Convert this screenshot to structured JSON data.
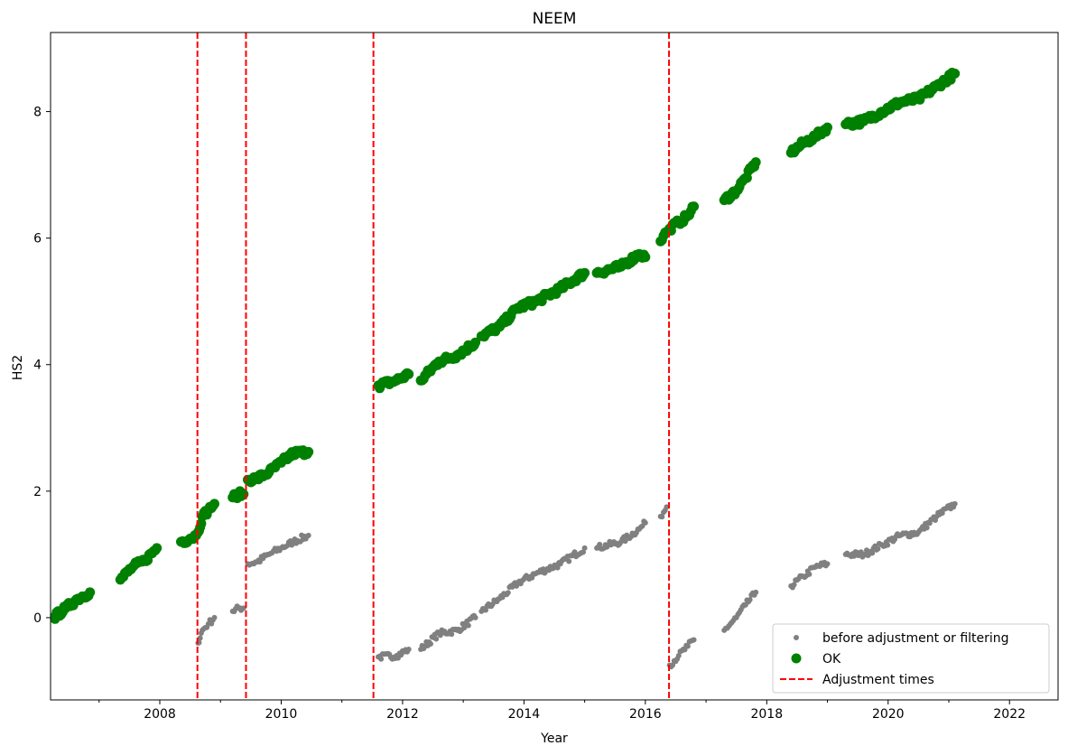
{
  "chart_data": {
    "type": "scatter",
    "title": "NEEM",
    "xlabel": "Year",
    "ylabel": "HS2",
    "xlim": [
      2006.2,
      2022.8
    ],
    "ylim": [
      -1.3,
      9.25
    ],
    "x_ticks": [
      2008,
      2010,
      2012,
      2014,
      2016,
      2018,
      2020,
      2022
    ],
    "y_ticks": [
      0,
      2,
      4,
      6,
      8
    ],
    "grid": false,
    "legend_position": "lower-right",
    "legend": [
      {
        "label": "before adjustment or filtering",
        "marker": "small-dot",
        "color": "#808080"
      },
      {
        "label": "OK",
        "marker": "dot",
        "color": "#008000"
      },
      {
        "label": "Adjustment times",
        "marker": "dashed-line",
        "color": "#ff0000"
      }
    ],
    "adjustment_times": [
      2008.62,
      2009.42,
      2011.52,
      2016.39
    ],
    "series": [
      {
        "name": "before adjustment or filtering",
        "color": "#808080",
        "segments": [
          {
            "x": [
              2006.25,
              2006.45,
              2006.65,
              2006.85
            ],
            "y": [
              0.0,
              0.15,
              0.3,
              0.4
            ]
          },
          {
            "x": [
              2007.35,
              2007.55,
              2007.75,
              2007.95
            ],
            "y": [
              0.6,
              0.8,
              0.9,
              1.1
            ]
          },
          {
            "x": [
              2008.63,
              2008.7,
              2008.8,
              2008.9
            ],
            "y": [
              -0.4,
              -0.2,
              -0.1,
              0.0
            ]
          },
          {
            "x": [
              2009.2,
              2009.3,
              2009.38
            ],
            "y": [
              0.1,
              0.15,
              0.15
            ]
          },
          {
            "x": [
              2009.45,
              2009.6,
              2009.8,
              2010.0,
              2010.2,
              2010.45
            ],
            "y": [
              0.85,
              0.88,
              1.0,
              1.1,
              1.2,
              1.3
            ]
          },
          {
            "x": [
              2011.6,
              2011.9,
              2012.1
            ],
            "y": [
              -0.62,
              -0.6,
              -0.5
            ]
          },
          {
            "x": [
              2012.3,
              2012.6,
              2012.9,
              2013.2
            ],
            "y": [
              -0.5,
              -0.25,
              -0.2,
              0.0
            ]
          },
          {
            "x": [
              2013.3,
              2013.6,
              2013.9,
              2014.2,
              2014.6,
              2015.0
            ],
            "y": [
              0.1,
              0.3,
              0.55,
              0.7,
              0.85,
              1.1
            ]
          },
          {
            "x": [
              2015.2,
              2015.6,
              2015.9,
              2016.0
            ],
            "y": [
              1.1,
              1.2,
              1.4,
              1.5
            ]
          },
          {
            "x": [
              2016.25,
              2016.35
            ],
            "y": [
              1.6,
              1.75
            ]
          },
          {
            "x": [
              2016.4,
              2016.55,
              2016.7,
              2016.8
            ],
            "y": [
              -0.75,
              -0.6,
              -0.45,
              -0.35
            ]
          },
          {
            "x": [
              2017.3,
              2017.5,
              2017.65,
              2017.82
            ],
            "y": [
              -0.2,
              0.0,
              0.2,
              0.4
            ]
          },
          {
            "x": [
              2018.4,
              2018.6,
              2018.8,
              2019.0
            ],
            "y": [
              0.5,
              0.65,
              0.8,
              0.85
            ]
          },
          {
            "x": [
              2019.3,
              2019.6,
              2019.9,
              2020.2,
              2020.5,
              2020.8,
              2021.1
            ],
            "y": [
              1.0,
              1.0,
              1.15,
              1.3,
              1.35,
              1.6,
              1.8
            ]
          }
        ]
      },
      {
        "name": "OK",
        "color": "#008000",
        "segments": [
          {
            "x": [
              2006.25,
              2006.45,
              2006.65,
              2006.85
            ],
            "y": [
              0.0,
              0.15,
              0.3,
              0.4
            ]
          },
          {
            "x": [
              2007.35,
              2007.55,
              2007.75,
              2007.95
            ],
            "y": [
              0.6,
              0.8,
              0.9,
              1.1
            ]
          },
          {
            "x": [
              2008.35,
              2008.5,
              2008.6
            ],
            "y": [
              1.2,
              1.25,
              1.3
            ]
          },
          {
            "x": [
              2008.63,
              2008.7,
              2008.8,
              2008.9
            ],
            "y": [
              1.35,
              1.6,
              1.7,
              1.8
            ]
          },
          {
            "x": [
              2009.2,
              2009.3,
              2009.38
            ],
            "y": [
              1.9,
              1.95,
              1.95
            ]
          },
          {
            "x": [
              2009.45,
              2009.6,
              2009.8,
              2010.0,
              2010.2,
              2010.45
            ],
            "y": [
              2.18,
              2.2,
              2.3,
              2.45,
              2.6,
              2.62
            ]
          },
          {
            "x": [
              2011.6,
              2011.9,
              2012.1
            ],
            "y": [
              3.67,
              3.75,
              3.85
            ]
          },
          {
            "x": [
              2012.3,
              2012.6,
              2012.9,
              2013.2
            ],
            "y": [
              3.75,
              4.05,
              4.15,
              4.35
            ]
          },
          {
            "x": [
              2013.3,
              2013.6,
              2013.9,
              2014.2,
              2014.6,
              2015.0
            ],
            "y": [
              4.45,
              4.6,
              4.9,
              5.0,
              5.2,
              5.45
            ]
          },
          {
            "x": [
              2015.2,
              2015.6,
              2015.9,
              2016.0
            ],
            "y": [
              5.45,
              5.55,
              5.75,
              5.7
            ]
          },
          {
            "x": [
              2016.25,
              2016.35
            ],
            "y": [
              5.95,
              6.1
            ]
          },
          {
            "x": [
              2016.4,
              2016.55,
              2016.7,
              2016.8
            ],
            "y": [
              6.15,
              6.25,
              6.35,
              6.5
            ]
          },
          {
            "x": [
              2017.3,
              2017.5,
              2017.65,
              2017.82
            ],
            "y": [
              6.6,
              6.75,
              6.95,
              7.2
            ]
          },
          {
            "x": [
              2018.4,
              2018.6,
              2018.8,
              2019.0
            ],
            "y": [
              7.35,
              7.5,
              7.6,
              7.75
            ]
          },
          {
            "x": [
              2019.3,
              2019.6,
              2019.9,
              2020.2,
              2020.5,
              2020.8,
              2021.1
            ],
            "y": [
              7.8,
              7.85,
              8.0,
              8.15,
              8.2,
              8.4,
              8.6
            ]
          }
        ]
      }
    ]
  }
}
